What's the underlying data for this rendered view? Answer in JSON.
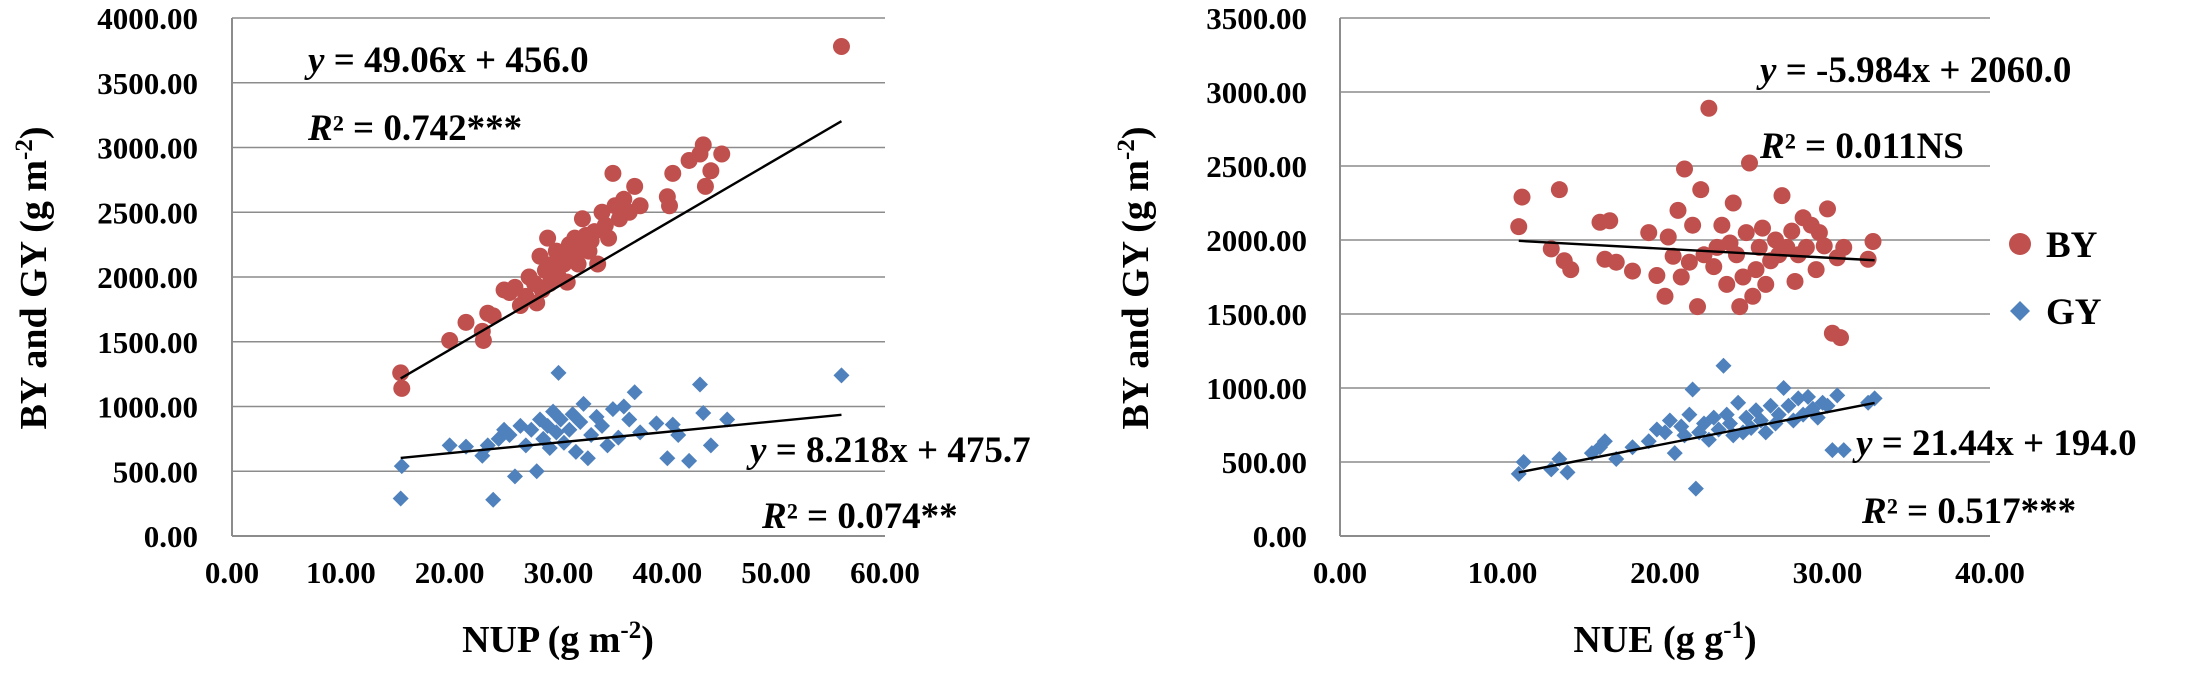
{
  "colors": {
    "BY": "#c0504d",
    "GY": "#4f81bd",
    "trend": "#000000",
    "grid": "#8c8c8c"
  },
  "legend": {
    "position": "right of second panel",
    "items": [
      {
        "series": "BY",
        "label": "BY",
        "marker": "circle"
      },
      {
        "series": "GY",
        "label": "GY",
        "marker": "diamond"
      }
    ]
  },
  "chart_data": [
    {
      "type": "scatter",
      "title": "",
      "xlabel": "NUP (g m-2)",
      "ylabel": "BY and GY (g m-2)",
      "xlim": [
        0,
        60
      ],
      "ylim": [
        0,
        4000
      ],
      "xticks": [
        0,
        10,
        20,
        30,
        40,
        50,
        60
      ],
      "yticks": [
        0,
        500,
        1000,
        1500,
        2000,
        2500,
        3000,
        3500,
        4000
      ],
      "xtick_labels": [
        "0.00",
        "10.00",
        "20.00",
        "30.00",
        "40.00",
        "50.00",
        "60.00"
      ],
      "ytick_labels": [
        "0.00",
        "500.00",
        "1000.00",
        "1500.00",
        "2000.00",
        "2500.00",
        "3000.00",
        "3500.00",
        "4000.00"
      ],
      "grid": "horizontal",
      "series": [
        {
          "name": "BY",
          "marker": "circle",
          "points": [
            [
              15.5,
              1260
            ],
            [
              15.6,
              1140
            ],
            [
              20,
              1510
            ],
            [
              21.5,
              1650
            ],
            [
              23,
              1580
            ],
            [
              23.1,
              1510
            ],
            [
              23.5,
              1720
            ],
            [
              24,
              1700
            ],
            [
              25,
              1900
            ],
            [
              25.5,
              1880
            ],
            [
              26,
              1920
            ],
            [
              26.5,
              1780
            ],
            [
              27,
              1850
            ],
            [
              27.3,
              2000
            ],
            [
              27.8,
              1950
            ],
            [
              28,
              1800
            ],
            [
              28.3,
              2160
            ],
            [
              28.5,
              1900
            ],
            [
              28.8,
              2050
            ],
            [
              29,
              2300
            ],
            [
              29.2,
              1950
            ],
            [
              29.5,
              2100
            ],
            [
              29.8,
              2200
            ],
            [
              30,
              2000
            ],
            [
              30.2,
              2180
            ],
            [
              30.5,
              2100
            ],
            [
              30.8,
              1960
            ],
            [
              31,
              2250
            ],
            [
              31.2,
              2150
            ],
            [
              31.5,
              2300
            ],
            [
              31.8,
              2100
            ],
            [
              32,
              2200
            ],
            [
              32.2,
              2450
            ],
            [
              32.5,
              2320
            ],
            [
              32.8,
              2200
            ],
            [
              33,
              2280
            ],
            [
              33.3,
              2350
            ],
            [
              33.6,
              2100
            ],
            [
              34,
              2500
            ],
            [
              34.3,
              2400
            ],
            [
              34.6,
              2300
            ],
            [
              35,
              2800
            ],
            [
              35.2,
              2550
            ],
            [
              35.6,
              2450
            ],
            [
              36,
              2600
            ],
            [
              36.5,
              2500
            ],
            [
              37,
              2700
            ],
            [
              37.5,
              2550
            ],
            [
              40,
              2620
            ],
            [
              40.2,
              2550
            ],
            [
              40.5,
              2800
            ],
            [
              42,
              2900
            ],
            [
              43,
              2950
            ],
            [
              43.3,
              3020
            ],
            [
              43.5,
              2700
            ],
            [
              44,
              2820
            ],
            [
              45,
              2950
            ],
            [
              56,
              3780
            ]
          ]
        },
        {
          "name": "GY",
          "marker": "diamond",
          "points": [
            [
              15.5,
              290
            ],
            [
              15.6,
              540
            ],
            [
              20,
              700
            ],
            [
              21.5,
              690
            ],
            [
              23,
              620
            ],
            [
              23.5,
              700
            ],
            [
              24,
              280
            ],
            [
              24.5,
              750
            ],
            [
              25,
              820
            ],
            [
              25.5,
              780
            ],
            [
              26,
              460
            ],
            [
              26.5,
              850
            ],
            [
              27,
              700
            ],
            [
              27.5,
              820
            ],
            [
              28,
              500
            ],
            [
              28.3,
              900
            ],
            [
              28.6,
              750
            ],
            [
              29,
              850
            ],
            [
              29.2,
              680
            ],
            [
              29.5,
              960
            ],
            [
              29.8,
              800
            ],
            [
              30,
              1260
            ],
            [
              30.2,
              900
            ],
            [
              30.5,
              720
            ],
            [
              31,
              820
            ],
            [
              31.3,
              940
            ],
            [
              31.6,
              650
            ],
            [
              32,
              880
            ],
            [
              32.3,
              1020
            ],
            [
              32.7,
              600
            ],
            [
              33,
              780
            ],
            [
              33.5,
              920
            ],
            [
              34,
              850
            ],
            [
              34.5,
              700
            ],
            [
              35,
              980
            ],
            [
              35.5,
              760
            ],
            [
              36,
              1000
            ],
            [
              36.5,
              900
            ],
            [
              37,
              1110
            ],
            [
              37.5,
              800
            ],
            [
              39,
              870
            ],
            [
              40,
              600
            ],
            [
              40.5,
              860
            ],
            [
              41,
              780
            ],
            [
              42,
              580
            ],
            [
              43,
              1170
            ],
            [
              43.3,
              950
            ],
            [
              44,
              700
            ],
            [
              45.5,
              900
            ],
            [
              56,
              1240
            ]
          ]
        }
      ],
      "trendlines": [
        {
          "series": "BY",
          "slope": 49.06,
          "intercept": 456.0,
          "x_range": [
            15.5,
            56
          ]
        },
        {
          "series": "GY",
          "slope": 8.218,
          "intercept": 475.7,
          "x_range": [
            15.5,
            56
          ]
        }
      ],
      "annotations": {
        "BY_equation": "y = 49.06x + 456.0",
        "BY_r2": "R² = 0.742***",
        "GY_equation": "y = 8.218x + 475.7",
        "GY_r2": "R² = 0.074**"
      }
    },
    {
      "type": "scatter",
      "title": "",
      "xlabel": "NUE (g g-1)",
      "ylabel": "BY and GY (g m-2)",
      "xlim": [
        0,
        40
      ],
      "ylim": [
        0,
        3500
      ],
      "xticks": [
        0,
        10,
        20,
        30,
        40
      ],
      "yticks": [
        0,
        500,
        1000,
        1500,
        2000,
        2500,
        3000,
        3500
      ],
      "xtick_labels": [
        "0.00",
        "10.00",
        "20.00",
        "30.00",
        "40.00"
      ],
      "ytick_labels": [
        "0.00",
        "500.00",
        "1000.00",
        "1500.00",
        "2000.00",
        "2500.00",
        "3000.00",
        "3500.00"
      ],
      "grid": "horizontal",
      "series": [
        {
          "name": "BY",
          "marker": "circle",
          "points": [
            [
              11,
              2090
            ],
            [
              11.2,
              2290
            ],
            [
              13,
              1940
            ],
            [
              13.5,
              2340
            ],
            [
              13.8,
              1860
            ],
            [
              14.2,
              1800
            ],
            [
              16,
              2120
            ],
            [
              16.3,
              1870
            ],
            [
              16.6,
              2130
            ],
            [
              17,
              1850
            ],
            [
              18,
              1790
            ],
            [
              19,
              2050
            ],
            [
              19.5,
              1760
            ],
            [
              20,
              1620
            ],
            [
              20.2,
              2020
            ],
            [
              20.5,
              1890
            ],
            [
              20.8,
              2200
            ],
            [
              21,
              1750
            ],
            [
              21.2,
              2480
            ],
            [
              21.5,
              1850
            ],
            [
              21.7,
              2100
            ],
            [
              22,
              1550
            ],
            [
              22.2,
              2340
            ],
            [
              22.4,
              1900
            ],
            [
              22.7,
              2890
            ],
            [
              23,
              1820
            ],
            [
              23.2,
              1950
            ],
            [
              23.5,
              2100
            ],
            [
              23.8,
              1700
            ],
            [
              24,
              1980
            ],
            [
              24.2,
              2250
            ],
            [
              24.4,
              1900
            ],
            [
              24.6,
              1550
            ],
            [
              24.8,
              1750
            ],
            [
              25,
              2050
            ],
            [
              25.2,
              2520
            ],
            [
              25.4,
              1620
            ],
            [
              25.6,
              1800
            ],
            [
              25.8,
              1950
            ],
            [
              26,
              2080
            ],
            [
              26.2,
              1700
            ],
            [
              26.5,
              1860
            ],
            [
              26.8,
              2000
            ],
            [
              27,
              1900
            ],
            [
              27.2,
              2300
            ],
            [
              27.5,
              1950
            ],
            [
              27.8,
              2060
            ],
            [
              28,
              1720
            ],
            [
              28.2,
              1900
            ],
            [
              28.5,
              2150
            ],
            [
              28.7,
              1950
            ],
            [
              29,
              2100
            ],
            [
              29.3,
              1800
            ],
            [
              29.5,
              2050
            ],
            [
              29.8,
              1960
            ],
            [
              30,
              2210
            ],
            [
              30.3,
              1370
            ],
            [
              30.6,
              1880
            ],
            [
              30.8,
              1340
            ],
            [
              31,
              1950
            ],
            [
              32.5,
              1870
            ],
            [
              32.8,
              1990
            ]
          ]
        },
        {
          "name": "GY",
          "marker": "diamond",
          "points": [
            [
              11,
              420
            ],
            [
              11.3,
              500
            ],
            [
              13,
              450
            ],
            [
              13.5,
              520
            ],
            [
              14,
              430
            ],
            [
              15.5,
              560
            ],
            [
              16,
              600
            ],
            [
              16.3,
              640
            ],
            [
              17,
              520
            ],
            [
              18,
              600
            ],
            [
              19,
              640
            ],
            [
              19.5,
              720
            ],
            [
              20,
              700
            ],
            [
              20.3,
              780
            ],
            [
              20.6,
              560
            ],
            [
              21,
              740
            ],
            [
              21.2,
              680
            ],
            [
              21.5,
              820
            ],
            [
              21.7,
              990
            ],
            [
              21.9,
              320
            ],
            [
              22.1,
              700
            ],
            [
              22.4,
              760
            ],
            [
              22.7,
              650
            ],
            [
              23,
              800
            ],
            [
              23.3,
              720
            ],
            [
              23.6,
              1150
            ],
            [
              23.8,
              820
            ],
            [
              24,
              760
            ],
            [
              24.2,
              680
            ],
            [
              24.5,
              900
            ],
            [
              24.8,
              700
            ],
            [
              25,
              800
            ],
            [
              25.3,
              730
            ],
            [
              25.6,
              850
            ],
            [
              25.9,
              780
            ],
            [
              26.2,
              700
            ],
            [
              26.5,
              880
            ],
            [
              26.8,
              760
            ],
            [
              27,
              820
            ],
            [
              27.3,
              1000
            ],
            [
              27.6,
              880
            ],
            [
              27.9,
              780
            ],
            [
              28.2,
              930
            ],
            [
              28.5,
              820
            ],
            [
              28.8,
              940
            ],
            [
              29.1,
              860
            ],
            [
              29.4,
              800
            ],
            [
              29.7,
              900
            ],
            [
              30,
              880
            ],
            [
              30.3,
              580
            ],
            [
              30.6,
              950
            ],
            [
              31,
              580
            ],
            [
              32.5,
              900
            ],
            [
              32.9,
              930
            ]
          ]
        }
      ],
      "trendlines": [
        {
          "series": "BY",
          "slope": -5.984,
          "intercept": 2060.0,
          "x_range": [
            11,
            32.9
          ]
        },
        {
          "series": "GY",
          "slope": 21.44,
          "intercept": 194.0,
          "x_range": [
            11,
            32.9
          ]
        }
      ],
      "annotations": {
        "BY_equation": "y = -5.984x + 2060.0",
        "BY_r2": "R² = 0.011NS",
        "GY_equation": "y = 21.44x + 194.0",
        "GY_r2": "R² = 0.517***"
      }
    }
  ]
}
